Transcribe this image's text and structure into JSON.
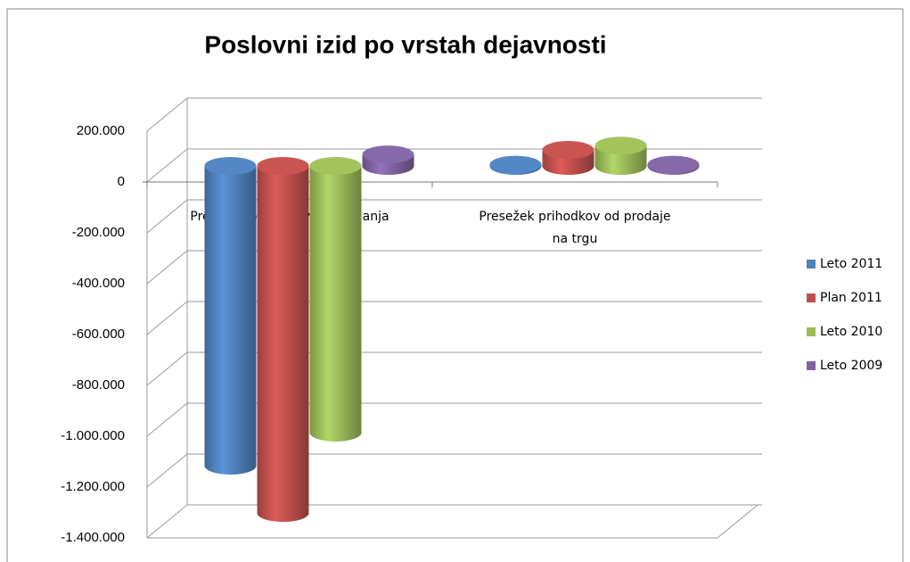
{
  "chart_data": {
    "type": "bar3d",
    "title": "Poslovni izid po vrstah dejavnosti",
    "categories": [
      "Presežek odhodkov od izvajanja JS",
      "Presežek prihodkov od prodaje na trgu"
    ],
    "series": [
      {
        "name": "Leto 2011",
        "color": "#4f81bd",
        "values": [
          -1179000,
          5000
        ]
      },
      {
        "name": "Plan 2011",
        "color": "#c0504d",
        "values": [
          -1365000,
          63000
        ]
      },
      {
        "name": "Leto 2010",
        "color": "#9bbb59",
        "values": [
          -1049000,
          80000
        ]
      },
      {
        "name": "Leto 2009",
        "color": "#8064a2",
        "values": [
          45000,
          5000
        ]
      }
    ],
    "ylim": [
      -1400000,
      200000
    ],
    "yticks": [
      {
        "value": -1400000,
        "label": "-1.400.000"
      },
      {
        "value": -1200000,
        "label": "-1.200.000"
      },
      {
        "value": -1000000,
        "label": "-1.000.000"
      },
      {
        "value": -800000,
        "label": "-800.000"
      },
      {
        "value": -600000,
        "label": "-600.000"
      },
      {
        "value": -400000,
        "label": "-400.000"
      },
      {
        "value": -200000,
        "label": "-200.000"
      },
      0,
      {
        "value": 200000,
        "label": "200.000"
      }
    ],
    "grid": true,
    "legend": "right"
  }
}
